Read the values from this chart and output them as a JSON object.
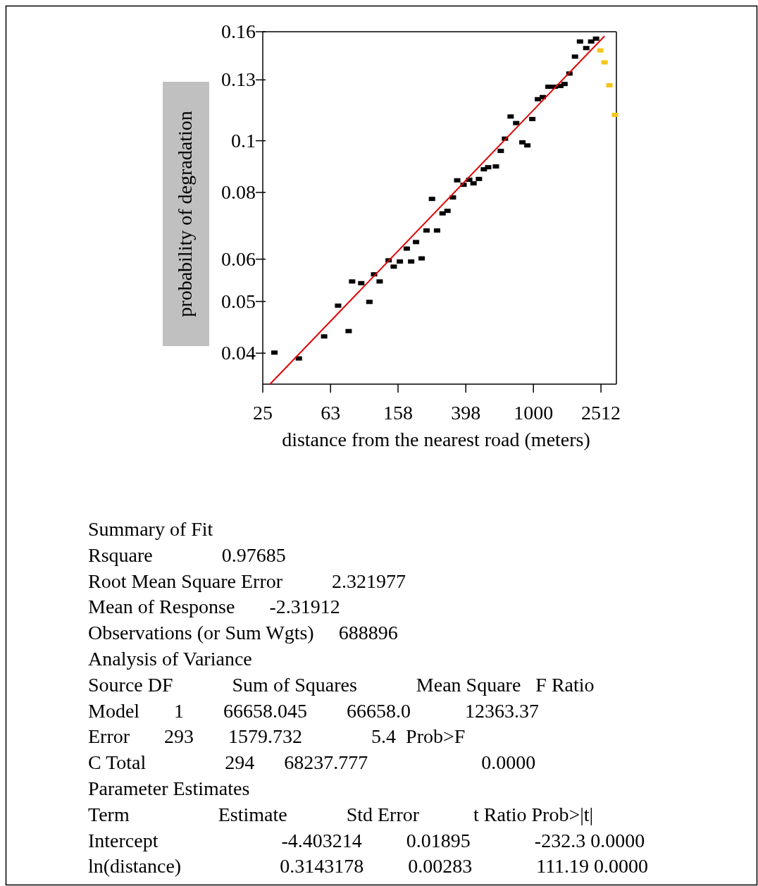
{
  "chart_data": {
    "type": "scatter",
    "xlabel": "distance from the nearest road (meters)",
    "ylabel": "probability of degradation",
    "log": "xy",
    "xlim": [
      25,
      3100
    ],
    "xticks": [
      25,
      63,
      158,
      398,
      1000,
      2512
    ],
    "ylim": [
      0.035,
      0.16
    ],
    "yticks": [
      0.04,
      0.05,
      0.06,
      0.08,
      0.1,
      0.13,
      0.16
    ],
    "series": [
      {
        "color": "#000000",
        "marker": "square",
        "x": [
          29.3,
          40.9,
          57.7,
          69.8,
          80.6,
          84.5,
          95.7,
          107,
          114,
          123,
          139,
          149,
          162,
          178,
          189,
          202,
          218,
          233,
          251,
          269,
          290,
          310,
          334,
          354,
          386,
          417,
          442,
          476,
          509,
          540,
          600,
          641,
          679,
          733,
          791,
          861,
          921,
          985,
          1064,
          1137,
          1227,
          1337,
          1443,
          1528,
          1634,
          1763,
          1887,
          2056,
          2198,
          2350
        ],
        "values": [
          0.0401,
          0.0391,
          0.043,
          0.0491,
          0.044,
          0.0545,
          0.0541,
          0.0499,
          0.0562,
          0.0545,
          0.0597,
          0.0581,
          0.0594,
          0.0628,
          0.0594,
          0.0646,
          0.0602,
          0.0679,
          0.0778,
          0.0679,
          0.0731,
          0.0739,
          0.0783,
          0.0843,
          0.0827,
          0.0845,
          0.0832,
          0.0848,
          0.0884,
          0.0892,
          0.0895,
          0.0957,
          0.1009,
          0.111,
          0.1079,
          0.0993,
          0.098,
          0.1098,
          0.1196,
          0.1207,
          0.1262,
          0.1262,
          0.1266,
          0.1277,
          0.1336,
          0.1437,
          0.1534,
          0.1491,
          0.1534,
          0.1553
        ]
      },
      {
        "color": "#f5c518",
        "marker": "square",
        "x": [
          2489,
          2636,
          2818,
          3041
        ],
        "values": [
          0.1476,
          0.1402,
          0.127,
          0.1118
        ]
      },
      {
        "type": "line",
        "marker": "none",
        "color": "#e00000",
        "x": [
          27.6,
          2636
        ],
        "values": [
          0.035,
          0.157
        ]
      }
    ],
    "annotations": [
      "Summary of Fit",
      "Rsquare              0.97685",
      "Root Mean Square Error          2.321977",
      "Mean of Response       -2.31912",
      "Observations (or Sum Wgts)     688896",
      "Analysis of Variance",
      "Source DF            Sum of Squares            Mean Square   F Ratio",
      "Model       1        66658.045        66658.0           12363.37",
      "Error       293       1579.732              5.4  Prob>F",
      "C Total                294      68237.777                       0.0000",
      "Parameter Estimates",
      "Term                  Estimate            Std Error           t Ratio Prob>|t|",
      "Intercept                         -4.403214         0.01895             -232.3 0.0000",
      "ln(distance)                    0.3143178         0.00283             111.19 0.0000"
    ]
  }
}
